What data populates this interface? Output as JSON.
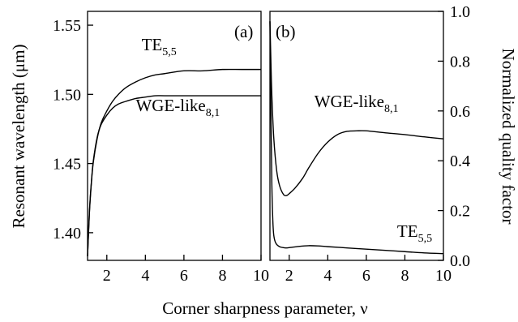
{
  "chart_data": [
    {
      "type": "line",
      "panel_label": "(a)",
      "xlabel": "Corner sharpness parameter, ν",
      "ylabel": "Resonant wavelength (μm)",
      "xlim": [
        1,
        10
      ],
      "ylim": [
        1.38,
        1.56
      ],
      "xticks": [
        2,
        4,
        6,
        8,
        10
      ],
      "xtick_labels": [
        "2",
        "4",
        "6",
        "8",
        "10"
      ],
      "yticks": [
        1.4,
        1.45,
        1.5,
        1.55
      ],
      "ytick_labels": [
        "1.40",
        "1.45",
        "1.50",
        "1.55"
      ],
      "grid": false,
      "series": [
        {
          "name": "TE5,5",
          "x": [
            1.0,
            1.1,
            1.2,
            1.3,
            1.5,
            1.7,
            2.0,
            2.3,
            2.6,
            3.0,
            3.5,
            4.0,
            4.5,
            5.0,
            6.0,
            7.0,
            8.0,
            9.0,
            10.0
          ],
          "y": [
            1.383,
            1.415,
            1.436,
            1.451,
            1.468,
            1.479,
            1.488,
            1.495,
            1.5,
            1.505,
            1.509,
            1.512,
            1.514,
            1.515,
            1.517,
            1.517,
            1.518,
            1.518,
            1.518
          ]
        },
        {
          "name": "WGE-like8,1",
          "x": [
            1.0,
            1.1,
            1.2,
            1.3,
            1.5,
            1.7,
            2.0,
            2.3,
            2.6,
            3.0,
            3.5,
            4.0,
            4.5,
            5.0,
            6.0,
            7.0,
            8.0,
            9.0,
            10.0
          ],
          "y": [
            1.383,
            1.416,
            1.437,
            1.452,
            1.469,
            1.478,
            1.485,
            1.49,
            1.493,
            1.495,
            1.497,
            1.498,
            1.499,
            1.499,
            1.499,
            1.499,
            1.499,
            1.499,
            1.499
          ]
        }
      ],
      "annotations": [
        {
          "series": "TE5,5",
          "main": "TE",
          "sub": "5,5",
          "x": 3.8,
          "y": 1.532
        },
        {
          "series": "WGE-like8,1",
          "main": "WGE-like",
          "sub": "8,1",
          "x": 3.5,
          "y": 1.488
        }
      ]
    },
    {
      "type": "line",
      "panel_label": "(b)",
      "xlabel": "Corner sharpness parameter, ν",
      "ylabel": "Normalized quality factor",
      "xlim": [
        1,
        10
      ],
      "ylim": [
        0,
        1.0
      ],
      "xticks": [
        2,
        4,
        6,
        8,
        10
      ],
      "xtick_labels": [
        "2",
        "4",
        "6",
        "8",
        "10"
      ],
      "yticks": [
        0.0,
        0.2,
        0.4,
        0.6,
        0.8,
        1.0
      ],
      "ytick_labels": [
        "0.0",
        "0.2",
        "0.4",
        "0.6",
        "0.8",
        "1.0"
      ],
      "grid": false,
      "series": [
        {
          "name": "WGE-like8,1",
          "x": [
            1.0,
            1.05,
            1.1,
            1.2,
            1.35,
            1.5,
            1.7,
            1.85,
            2.0,
            2.3,
            2.7,
            3.0,
            3.5,
            4.0,
            4.5,
            5.0,
            5.5,
            6.0,
            7.0,
            8.0,
            9.0,
            10.0
          ],
          "y": [
            0.96,
            0.8,
            0.66,
            0.49,
            0.36,
            0.3,
            0.265,
            0.26,
            0.268,
            0.29,
            0.33,
            0.37,
            0.43,
            0.475,
            0.505,
            0.518,
            0.52,
            0.52,
            0.512,
            0.505,
            0.496,
            0.488
          ]
        },
        {
          "name": "TE5,5",
          "x": [
            1.0,
            1.05,
            1.1,
            1.15,
            1.2,
            1.3,
            1.5,
            1.8,
            2.0,
            2.5,
            3.0,
            3.5,
            4.0,
            5.0,
            6.0,
            7.0,
            8.0,
            9.0,
            10.0
          ],
          "y": [
            0.96,
            0.6,
            0.3,
            0.16,
            0.1,
            0.07,
            0.055,
            0.05,
            0.051,
            0.056,
            0.059,
            0.058,
            0.055,
            0.05,
            0.045,
            0.04,
            0.035,
            0.03,
            0.027
          ]
        }
      ],
      "annotations": [
        {
          "series": "WGE-like8,1",
          "main": "WGE-like",
          "sub": "8,1",
          "x": 3.3,
          "y": 0.615
        },
        {
          "series": "TE5,5",
          "main": "TE",
          "sub": "5,5",
          "x": 7.6,
          "y": 0.095
        }
      ]
    }
  ]
}
